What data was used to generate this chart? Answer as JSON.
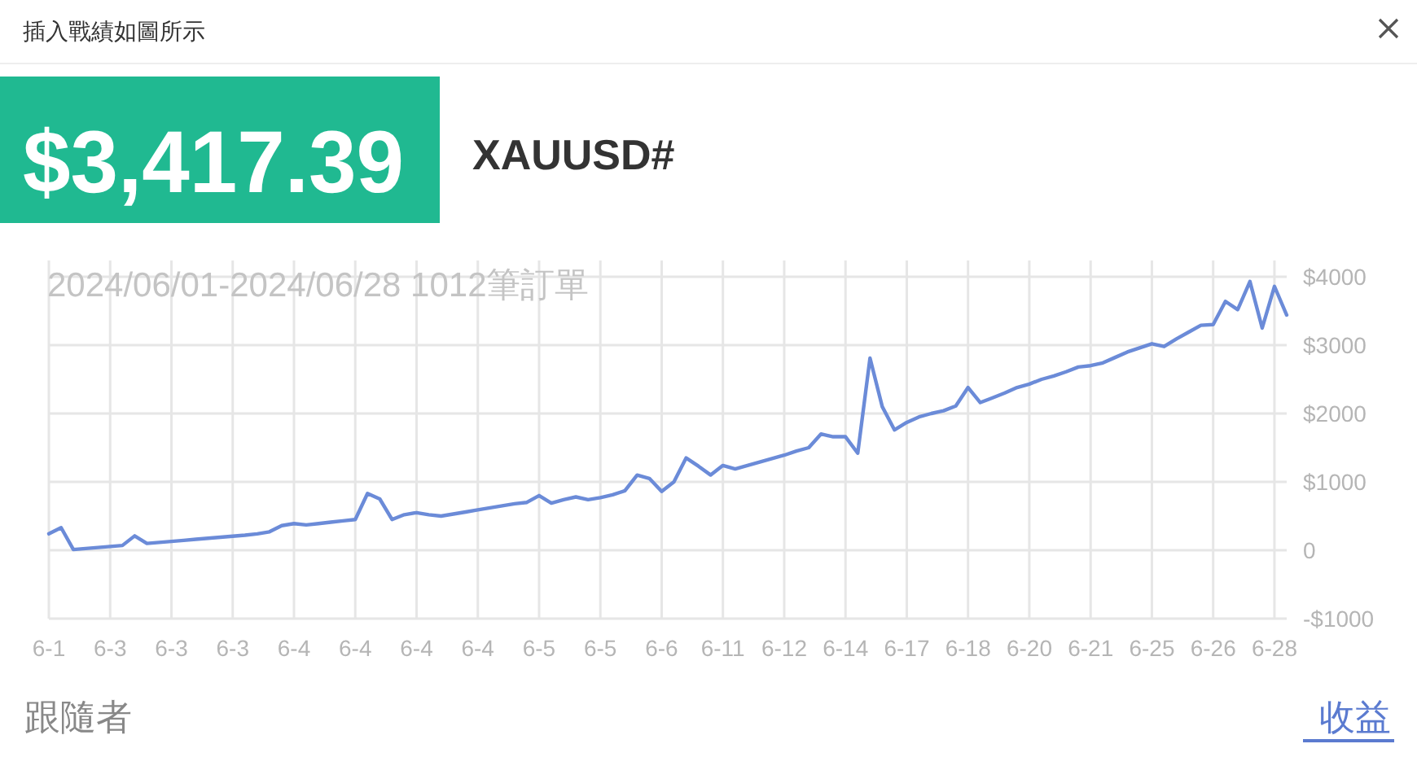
{
  "chart_data": {
    "type": "line",
    "title": "2024/06/01-2024/06/28 1012筆訂單",
    "annotations": [
      "插入戰績如圖所示",
      "$3,417.39",
      "XAUUSD#",
      "跟隨者",
      "收益"
    ],
    "categories": [
      "6-1",
      null,
      null,
      null,
      null,
      "6-3",
      null,
      null,
      null,
      null,
      "6-3",
      null,
      null,
      null,
      null,
      "6-3",
      null,
      null,
      null,
      null,
      "6-4",
      null,
      null,
      null,
      null,
      "6-4",
      null,
      null,
      null,
      null,
      "6-4",
      null,
      null,
      null,
      null,
      "6-4",
      null,
      null,
      null,
      null,
      "6-5",
      null,
      null,
      null,
      null,
      "6-5",
      null,
      null,
      null,
      null,
      "6-6",
      null,
      null,
      null,
      null,
      "6-11",
      null,
      null,
      null,
      null,
      "6-12",
      null,
      null,
      null,
      null,
      "6-14",
      null,
      null,
      null,
      null,
      "6-17",
      null,
      null,
      null,
      null,
      "6-18",
      null,
      null,
      null,
      null,
      "6-20",
      null,
      null,
      null,
      null,
      "6-21",
      null,
      null,
      null,
      null,
      "6-25",
      null,
      null,
      null,
      null,
      "6-26",
      null,
      null,
      null,
      null,
      "6-28",
      null
    ],
    "ylim": [
      -1000,
      4000
    ],
    "yticks": [
      {
        "value": -1000,
        "label": "-$1000"
      },
      0,
      {
        "value": 1000,
        "label": "$1000"
      },
      {
        "value": 2000,
        "label": "$2000"
      },
      {
        "value": 3000,
        "label": "$3000"
      },
      {
        "value": 4000,
        "label": "$4000"
      }
    ],
    "grid": true,
    "marker": "none",
    "line_style": "solid",
    "series": [
      {
        "color": "#6b8bd8",
        "values": [
          240,
          330,
          10,
          25,
          40,
          55,
          70,
          210,
          100,
          115,
          130,
          145,
          160,
          175,
          190,
          205,
          220,
          240,
          270,
          360,
          390,
          370,
          390,
          410,
          430,
          450,
          830,
          750,
          450,
          520,
          550,
          520,
          500,
          530,
          560,
          590,
          620,
          650,
          680,
          700,
          800,
          690,
          740,
          780,
          740,
          770,
          810,
          870,
          1100,
          1050,
          860,
          1000,
          1350,
          1230,
          1100,
          1240,
          1190,
          1240,
          1290,
          1340,
          1390,
          1450,
          1500,
          1700,
          1660,
          1660,
          1420,
          2810,
          2100,
          1760,
          1870,
          1950,
          2000,
          2040,
          2110,
          2380,
          2160,
          2230,
          2300,
          2380,
          2430,
          2500,
          2550,
          2610,
          2680,
          2700,
          2740,
          2820,
          2900,
          2960,
          3020,
          2980,
          3090,
          3190,
          3290,
          3300,
          3640,
          3520,
          3930,
          3250,
          3860,
          3440
        ]
      }
    ]
  }
}
